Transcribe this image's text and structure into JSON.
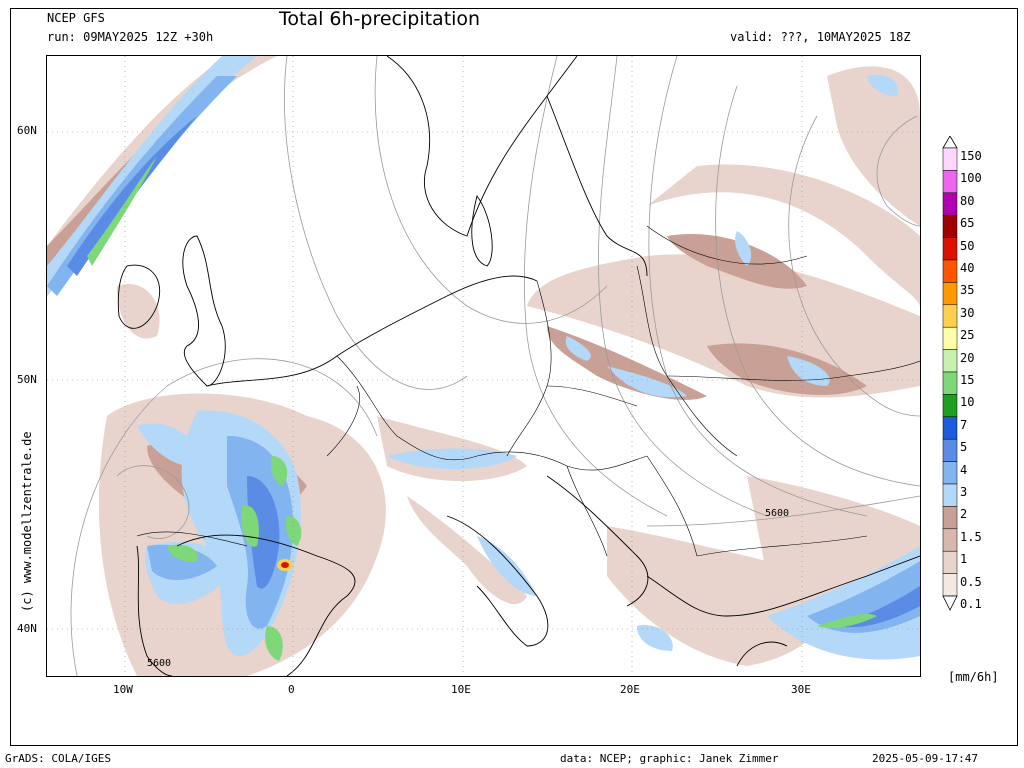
{
  "header": {
    "model": "NCEP GFS",
    "run": "run: 09MAY2025 12Z +30h",
    "title": "Total 6h-precipitation",
    "valid": "valid: ???, 10MAY2025 18Z"
  },
  "footer": {
    "left": "GrADS: COLA/IGES",
    "middle": "data: NCEP; graphic: Janek Zimmer",
    "right": "2025-05-09-17:47"
  },
  "copyright": "(c) www.modellzentrale.de",
  "axes": {
    "lat_labels": [
      "60N",
      "50N",
      "40N"
    ],
    "lon_labels": [
      "10W",
      "0",
      "10E",
      "20E",
      "30E"
    ]
  },
  "contour_labels": [
    "5600",
    "5600"
  ],
  "legend": {
    "unit": "[mm/6h]",
    "levels": [
      {
        "label": "150",
        "color": "#ffd6ff"
      },
      {
        "label": "100",
        "color": "#ee66ee"
      },
      {
        "label": "80",
        "color": "#b000b0"
      },
      {
        "label": "65",
        "color": "#a00000"
      },
      {
        "label": "50",
        "color": "#dd1100"
      },
      {
        "label": "40",
        "color": "#ff5500"
      },
      {
        "label": "35",
        "color": "#ff9900"
      },
      {
        "label": "30",
        "color": "#ffd050"
      },
      {
        "label": "25",
        "color": "#ffffaa"
      },
      {
        "label": "20",
        "color": "#c8f0b0"
      },
      {
        "label": "15",
        "color": "#7ed87a"
      },
      {
        "label": "10",
        "color": "#1ea01e"
      },
      {
        "label": "7",
        "color": "#1e5adc"
      },
      {
        "label": "5",
        "color": "#5a8ce6"
      },
      {
        "label": "4",
        "color": "#82b4f0"
      },
      {
        "label": "3",
        "color": "#b4d8f8"
      },
      {
        "label": "2",
        "color": "#c8a096"
      },
      {
        "label": "1.5",
        "color": "#d8b8ac"
      },
      {
        "label": "1",
        "color": "#e8d4cc"
      },
      {
        "label": "0.5",
        "color": "#f4e8e2"
      },
      {
        "label": "0.1",
        "color": "#ffffff"
      }
    ]
  }
}
